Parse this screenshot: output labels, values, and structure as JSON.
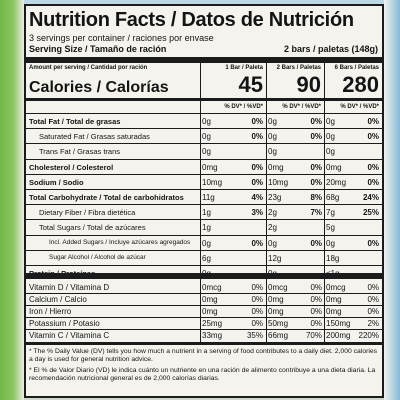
{
  "title": "Nutrition Facts / Datos de Nutrición",
  "servings_per_container": "3 servings per container / raciones por envase",
  "serving_size_label": "Serving Size / Tamaño de ración",
  "serving_size_value": "2 bars / paletas (148g)",
  "header": {
    "amount_label": "Amount per serving / Cantidad por ración",
    "columns": [
      "1 Bar / Paleta",
      "2 Bars / Paletas",
      "6 Bars / Paletas"
    ],
    "dv_label": "% DV* / %VD*"
  },
  "calories": {
    "label": "Calories / Calorías",
    "values": [
      "45",
      "90",
      "280"
    ]
  },
  "rows": [
    {
      "label": "Total Fat / Total de grasas",
      "bold": true,
      "indent": 0,
      "values": [
        "0g",
        "0%",
        "0g",
        "0%",
        "0g",
        "0%"
      ]
    },
    {
      "label": "Saturated Fat / Grasas saturadas",
      "bold": false,
      "indent": 1,
      "values": [
        "0g",
        "0%",
        "0g",
        "0%",
        "0g",
        "0%"
      ]
    },
    {
      "label": "Trans Fat / Grasas trans",
      "bold": false,
      "indent": 1,
      "values": [
        "0g",
        "",
        "0g",
        "",
        "0g",
        ""
      ]
    },
    {
      "label": "Cholesterol / Colesterol",
      "bold": true,
      "indent": 0,
      "values": [
        "0mg",
        "0%",
        "0mg",
        "0%",
        "0mg",
        "0%"
      ]
    },
    {
      "label": "Sodium / Sodio",
      "bold": true,
      "indent": 0,
      "values": [
        "10mg",
        "0%",
        "10mg",
        "0%",
        "20mg",
        "0%"
      ]
    },
    {
      "label": "Total Carbohydrate / Total de carbohidratos",
      "bold": true,
      "indent": 0,
      "values": [
        "11g",
        "4%",
        "23g",
        "8%",
        "68g",
        "24%"
      ]
    },
    {
      "label": "Dietary Fiber / Fibra dietética",
      "bold": false,
      "indent": 1,
      "values": [
        "1g",
        "3%",
        "2g",
        "7%",
        "7g",
        "25%"
      ]
    },
    {
      "label": "Total Sugars / Total de azúcares",
      "bold": false,
      "indent": 1,
      "values": [
        "1g",
        "",
        "2g",
        "",
        "5g",
        ""
      ]
    },
    {
      "label": "Incl. Added Sugars / Incluye azúcares agregados",
      "bold": false,
      "indent": 2,
      "values": [
        "0g",
        "0%",
        "0g",
        "0%",
        "0g",
        "0%"
      ]
    },
    {
      "label": "Sugar Alcohol / Alcohol de azúcar",
      "bold": false,
      "indent": 2,
      "values": [
        "6g",
        "",
        "12g",
        "",
        "18g",
        ""
      ]
    },
    {
      "label": "Protein / Proteínas",
      "bold": true,
      "indent": 0,
      "values": [
        "0g",
        "",
        "0g",
        "",
        "<1g",
        ""
      ]
    }
  ],
  "vitamins": [
    {
      "label": "Vitamin D / Vitamina D",
      "values": [
        "0mcg",
        "0%",
        "0mcg",
        "0%",
        "0mcg",
        "0%"
      ]
    },
    {
      "label": "Calcium / Calcio",
      "values": [
        "0mg",
        "0%",
        "0mg",
        "0%",
        "0mg",
        "0%"
      ]
    },
    {
      "label": "Iron / Hierro",
      "values": [
        "0mg",
        "0%",
        "0mg",
        "0%",
        "0mg",
        "0%"
      ]
    },
    {
      "label": "Potassium / Potasio",
      "values": [
        "25mg",
        "0%",
        "50mg",
        "0%",
        "150mg",
        "2%"
      ]
    },
    {
      "label": "Vitamin C / Vitamina C",
      "values": [
        "33mg",
        "35%",
        "66mg",
        "70%",
        "200mg",
        "220%"
      ]
    }
  ],
  "footnote_en": "* The % Daily Value (DV) tells you how much a nutrient in a serving of food contributes to a daily diet. 2,000 calories a day is used for general nutrition advice.",
  "footnote_es": "* El % de Valor Diario (VD) le indica cuánto un nutriente en una ración de alimento contribuye a una dieta diaria. La recomendación nutricional general es de 2,000 calorías diarias."
}
